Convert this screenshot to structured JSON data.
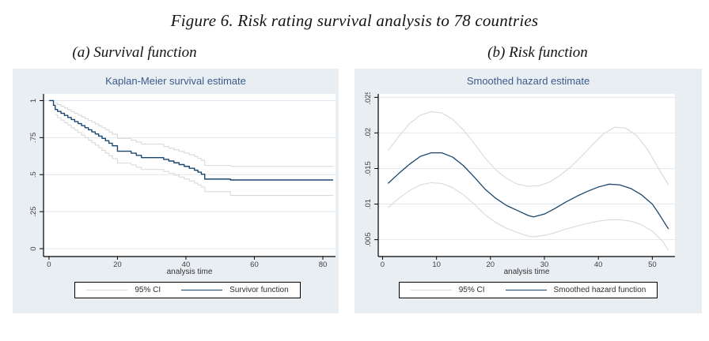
{
  "page": {
    "title": "Figure 6. Risk rating survival analysis to 78 countries",
    "caption_a": "(a)  Survival function",
    "caption_b": "(b)  Risk function"
  },
  "colors": {
    "panel_bg": "#e9eef3",
    "plot_bg": "#ffffff",
    "grid": "#e2e8f1",
    "axis": "#000000",
    "tick_text": "#3f3f3f",
    "title_navy": "#3a5a8c",
    "navy": "#1a476f",
    "ci_gray": "#d9d9d9"
  },
  "chart_data": [
    {
      "type": "line",
      "title": "Kaplan-Meier survival estimate",
      "xlabel": "analysis time",
      "ylabel": "",
      "xlim": [
        -1.6,
        83.7
      ],
      "ylim": [
        -0.053,
        1.045
      ],
      "grid": true,
      "legend_position": "bottom",
      "xticks": {
        "values": [
          0,
          20,
          40,
          60,
          80
        ],
        "labels": [
          "0",
          "20",
          "40",
          "60",
          "80"
        ]
      },
      "yticks": {
        "values": [
          0,
          0.25,
          0.5,
          0.75,
          1
        ],
        "labels": [
          "0",
          ".25",
          ".5",
          ".75",
          "1"
        ]
      },
      "series": [
        {
          "name": "95% CI upper bound",
          "color": "ci_gray",
          "step": true,
          "width": 1.1,
          "x": [
            1.8,
            2.5,
            3.5,
            4.5,
            5.5,
            6.5,
            7.5,
            8.5,
            9.5,
            10.5,
            11.5,
            12.5,
            13.5,
            14.5,
            15.5,
            16.5,
            17.5,
            18.5,
            20,
            24,
            25.5,
            27,
            33.5,
            35,
            36.5,
            38,
            39.5,
            41,
            42.5,
            43.5,
            44.5,
            45.5,
            53,
            83
          ],
          "y": [
            0.985,
            0.973,
            0.962,
            0.95,
            0.938,
            0.926,
            0.914,
            0.902,
            0.89,
            0.878,
            0.866,
            0.854,
            0.842,
            0.83,
            0.817,
            0.803,
            0.788,
            0.773,
            0.745,
            0.733,
            0.72,
            0.706,
            0.69,
            0.679,
            0.668,
            0.657,
            0.646,
            0.634,
            0.622,
            0.61,
            0.597,
            0.562,
            0.556,
            0.556
          ]
        },
        {
          "name": "95% CI lower bound",
          "color": "ci_gray",
          "step": true,
          "width": 1.1,
          "x": [
            1.8,
            2.5,
            3.5,
            4.5,
            5.5,
            6.5,
            7.5,
            8.5,
            9.5,
            10.5,
            11.5,
            12.5,
            13.5,
            14.5,
            15.5,
            16.5,
            17.5,
            18.5,
            20,
            24,
            25.5,
            27,
            33.5,
            35,
            36.5,
            38,
            39.5,
            41,
            42.5,
            43.5,
            44.5,
            45.5,
            53,
            83
          ],
          "y": [
            0.905,
            0.885,
            0.868,
            0.851,
            0.834,
            0.817,
            0.8,
            0.784,
            0.767,
            0.75,
            0.733,
            0.716,
            0.699,
            0.682,
            0.664,
            0.646,
            0.627,
            0.608,
            0.578,
            0.565,
            0.55,
            0.535,
            0.522,
            0.51,
            0.497,
            0.484,
            0.471,
            0.457,
            0.443,
            0.43,
            0.416,
            0.385,
            0.36,
            0.36
          ]
        },
        {
          "name": "Survivor function",
          "color": "navy",
          "step": true,
          "width": 1.4,
          "x": [
            0,
            1.3,
            1.8,
            2.5,
            3.5,
            4.5,
            5.5,
            6.5,
            7.5,
            8.5,
            9.5,
            10.5,
            11.5,
            12.5,
            13.5,
            14.5,
            15.5,
            16.5,
            17.5,
            18.5,
            20,
            24,
            25.5,
            27,
            33.5,
            35,
            36.5,
            38,
            39.5,
            41,
            42.5,
            43.5,
            44.5,
            45.5,
            53,
            83
          ],
          "y": [
            1,
            0.968,
            0.94,
            0.927,
            0.914,
            0.9,
            0.886,
            0.872,
            0.858,
            0.845,
            0.831,
            0.817,
            0.803,
            0.789,
            0.775,
            0.76,
            0.745,
            0.729,
            0.712,
            0.695,
            0.658,
            0.645,
            0.63,
            0.615,
            0.603,
            0.592,
            0.58,
            0.568,
            0.556,
            0.543,
            0.53,
            0.517,
            0.503,
            0.47,
            0.464,
            0.464
          ]
        }
      ],
      "legend": [
        {
          "label": "95% CI",
          "color": "ci_gray"
        },
        {
          "label": "Survivor function",
          "color": "navy"
        }
      ]
    },
    {
      "type": "line",
      "title": "Smoothed hazard estimate",
      "xlabel": "analysis time",
      "ylabel": "",
      "xlim": [
        -0.8,
        54.2
      ],
      "ylim": [
        0.00263,
        0.02548
      ],
      "grid": true,
      "legend_position": "bottom",
      "xticks": {
        "values": [
          0,
          10,
          20,
          30,
          40,
          50
        ],
        "labels": [
          "0",
          "10",
          "20",
          "30",
          "40",
          "50"
        ]
      },
      "yticks": {
        "values": [
          0.005,
          0.01,
          0.015,
          0.02,
          0.025
        ],
        "labels": [
          ".005",
          ".01",
          ".015",
          ".02",
          ".025"
        ]
      },
      "series": [
        {
          "name": "95% CI upper bound",
          "color": "ci_gray",
          "step": false,
          "width": 1.1,
          "x": [
            1,
            3,
            5,
            7,
            9,
            11,
            13,
            15,
            17,
            19,
            21,
            23,
            25,
            27,
            29,
            31,
            33,
            35,
            37,
            39,
            41,
            43,
            45,
            47,
            49,
            51,
            53
          ],
          "y": [
            0.0175,
            0.0195,
            0.0213,
            0.0225,
            0.023,
            0.0228,
            0.0219,
            0.0204,
            0.0185,
            0.0165,
            0.0148,
            0.0136,
            0.0128,
            0.0125,
            0.0126,
            0.0131,
            0.0141,
            0.0153,
            0.0168,
            0.0184,
            0.0199,
            0.0208,
            0.0207,
            0.0197,
            0.0178,
            0.0152,
            0.0127
          ]
        },
        {
          "name": "95% CI lower bound",
          "color": "ci_gray",
          "step": false,
          "width": 1.1,
          "x": [
            1,
            3,
            5,
            7,
            9,
            11,
            13,
            15,
            17,
            19,
            21,
            23,
            25,
            27,
            28,
            30,
            32,
            34,
            36,
            38,
            40,
            42,
            44,
            46,
            48,
            50,
            52,
            53
          ],
          "y": [
            0.0095,
            0.0108,
            0.0119,
            0.0127,
            0.013,
            0.0129,
            0.0123,
            0.0113,
            0.01,
            0.0085,
            0.0074,
            0.0066,
            0.006,
            0.0055,
            0.0054,
            0.0056,
            0.006,
            0.0065,
            0.0069,
            0.0073,
            0.0076,
            0.0078,
            0.0078,
            0.0076,
            0.0071,
            0.0062,
            0.0047,
            0.0035
          ]
        },
        {
          "name": "Smoothed hazard function",
          "color": "navy",
          "step": false,
          "width": 1.3,
          "x": [
            1,
            3,
            5,
            7,
            9,
            11,
            13,
            15,
            17,
            19,
            21,
            23,
            25,
            27,
            28,
            30,
            32,
            34,
            36,
            38,
            40,
            42,
            44,
            46,
            48,
            50,
            51,
            52,
            53
          ],
          "y": [
            0.0129,
            0.0143,
            0.0156,
            0.0167,
            0.0172,
            0.0172,
            0.0166,
            0.0154,
            0.0138,
            0.0121,
            0.0108,
            0.0098,
            0.0091,
            0.0084,
            0.0082,
            0.0086,
            0.0094,
            0.0103,
            0.0111,
            0.0118,
            0.0124,
            0.0128,
            0.0127,
            0.0122,
            0.0113,
            0.01,
            0.0089,
            0.0077,
            0.0065
          ]
        }
      ],
      "legend": [
        {
          "label": "95% CI",
          "color": "ci_gray"
        },
        {
          "label": "Smoothed hazard function",
          "color": "navy"
        }
      ]
    }
  ]
}
